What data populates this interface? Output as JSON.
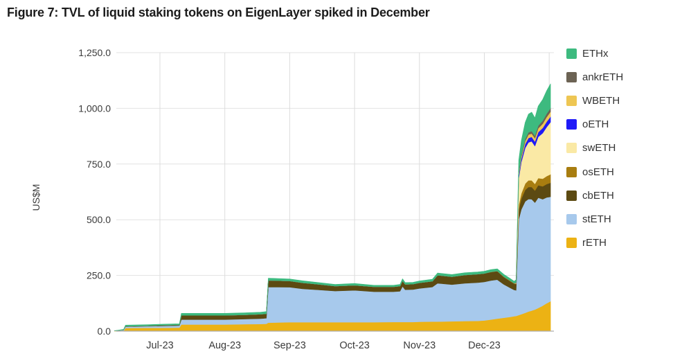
{
  "title": "Figure 7: TVL of liquid staking tokens on EigenLayer spiked in December",
  "chart_data": {
    "type": "area",
    "stacked": true,
    "title": "Figure 7: TVL of liquid staking tokens on EigenLayer spiked in December",
    "xlabel": "",
    "ylabel": "US$M",
    "ylim": [
      0,
      1250
    ],
    "y_ticks": [
      "0.0",
      "250.0",
      "500.0",
      "750.0",
      "1,000.0",
      "1,250.0"
    ],
    "y_tick_values": [
      0,
      250,
      500,
      750,
      1000,
      1250
    ],
    "x_ticks": [
      "Jul-23",
      "Aug-23",
      "Sep-23",
      "Oct-23",
      "Nov-23",
      "Dec-23"
    ],
    "x_tick_month_index": [
      1,
      2,
      3,
      4,
      5,
      6
    ],
    "x_range_month_index": [
      0.3,
      7.02
    ],
    "x_unit": "months (Jun-23 start = 0, Jul-23 tick = 1 … Jan-24 = 7)",
    "grid": true,
    "legend_position": "right",
    "series": [
      {
        "name": "ETHx",
        "color": "#3dba7f"
      },
      {
        "name": "ankrETH",
        "color": "#6c6354"
      },
      {
        "name": "WBETH",
        "color": "#eec653"
      },
      {
        "name": "oETH",
        "color": "#1f1af7"
      },
      {
        "name": "swETH",
        "color": "#fae9a5"
      },
      {
        "name": "osETH",
        "color": "#a87d10"
      },
      {
        "name": "cbETH",
        "color": "#5c4a12"
      },
      {
        "name": "stETH",
        "color": "#a7c9ec"
      },
      {
        "name": "rETH",
        "color": "#ecb214"
      }
    ],
    "stack_order_bottom_to_top": [
      "rETH",
      "stETH",
      "cbETH",
      "osETH",
      "swETH",
      "oETH",
      "WBETH",
      "ankrETH",
      "ETHx"
    ],
    "columns": [
      "t",
      "rETH",
      "stETH",
      "cbETH",
      "osETH",
      "swETH",
      "oETH",
      "WBETH",
      "ankrETH",
      "ETHx"
    ],
    "points": [
      [
        0.3,
        1,
        0.5,
        0,
        0,
        0,
        0,
        0,
        0,
        0.5
      ],
      [
        0.44,
        2,
        3,
        1,
        0,
        0,
        0,
        0,
        0,
        2
      ],
      [
        0.47,
        14,
        6,
        2,
        0,
        0,
        0,
        0,
        0,
        5
      ],
      [
        0.8,
        15,
        7,
        2,
        0,
        0,
        0,
        0,
        0,
        5
      ],
      [
        1.0,
        15,
        8,
        3,
        0,
        0,
        0,
        0,
        0,
        5
      ],
      [
        1.3,
        16,
        9,
        3,
        0,
        0,
        0,
        0,
        0,
        5
      ],
      [
        1.33,
        30,
        22,
        19,
        0,
        0,
        0,
        0,
        0,
        9
      ],
      [
        1.6,
        30,
        22,
        19,
        0,
        0,
        0,
        0,
        0,
        9
      ],
      [
        2.0,
        30,
        22,
        19,
        0,
        0,
        0,
        0,
        0,
        9
      ],
      [
        2.3,
        31,
        23,
        19,
        0,
        0,
        0,
        0,
        0,
        9
      ],
      [
        2.55,
        32,
        24,
        20,
        0,
        0,
        0,
        0,
        0,
        9
      ],
      [
        2.64,
        33,
        25,
        20,
        0,
        0,
        0,
        0,
        0,
        10
      ],
      [
        2.67,
        38,
        160,
        30,
        0,
        0,
        0,
        0,
        0,
        10
      ],
      [
        3.0,
        40,
        157,
        28,
        0,
        0,
        0,
        0,
        0,
        9
      ],
      [
        3.2,
        40,
        150,
        27,
        0,
        0,
        0,
        0,
        0,
        9
      ],
      [
        3.45,
        40,
        145,
        25,
        0,
        0,
        0,
        0,
        0,
        8
      ],
      [
        3.7,
        40,
        140,
        22,
        0,
        0,
        0,
        0,
        0,
        8
      ],
      [
        4.0,
        40,
        143,
        23,
        0,
        0,
        0,
        0,
        0,
        8
      ],
      [
        4.3,
        40,
        137,
        22,
        0,
        0,
        0,
        0,
        0,
        7
      ],
      [
        4.6,
        41,
        136,
        22,
        0,
        0,
        0,
        0,
        0,
        7
      ],
      [
        4.7,
        41,
        138,
        23,
        0,
        0,
        0,
        0,
        0,
        8
      ],
      [
        4.74,
        41,
        160,
        25,
        0,
        0,
        0,
        0,
        0,
        9
      ],
      [
        4.78,
        41,
        145,
        24,
        0,
        0,
        0,
        0,
        0,
        8
      ],
      [
        4.9,
        41,
        146,
        24,
        0,
        0,
        0,
        0,
        0,
        8
      ],
      [
        5.0,
        42,
        150,
        25,
        0,
        0,
        0,
        0,
        0,
        8
      ],
      [
        5.2,
        43,
        155,
        26,
        0,
        0,
        0,
        0,
        0,
        9
      ],
      [
        5.28,
        43,
        172,
        36,
        0,
        0,
        0,
        0,
        0,
        10
      ],
      [
        5.5,
        44,
        165,
        35,
        0,
        0,
        0,
        0,
        0,
        10
      ],
      [
        5.7,
        45,
        170,
        37,
        0,
        0,
        0,
        0,
        0,
        10
      ],
      [
        5.9,
        46,
        172,
        38,
        0,
        0,
        0,
        0,
        0,
        10
      ],
      [
        6.0,
        48,
        173,
        38,
        0,
        0,
        0,
        0,
        0,
        10
      ],
      [
        6.1,
        52,
        175,
        38,
        1,
        0,
        0,
        0,
        0,
        10
      ],
      [
        6.2,
        56,
        175,
        38,
        1,
        0,
        0,
        0,
        0,
        10
      ],
      [
        6.3,
        60,
        150,
        33,
        2,
        0,
        0,
        0,
        0,
        10
      ],
      [
        6.4,
        64,
        130,
        30,
        2,
        0,
        0,
        0,
        0,
        10
      ],
      [
        6.46,
        67,
        118,
        28,
        2,
        0,
        0,
        0,
        0,
        9
      ],
      [
        6.49,
        68,
        115,
        28,
        3,
        2,
        1,
        1,
        1,
        12
      ],
      [
        6.53,
        72,
        430,
        45,
        20,
        120,
        12,
        8,
        5,
        55
      ],
      [
        6.57,
        76,
        470,
        48,
        24,
        140,
        15,
        10,
        7,
        65
      ],
      [
        6.63,
        82,
        500,
        52,
        28,
        160,
        18,
        13,
        9,
        75
      ],
      [
        6.68,
        88,
        505,
        54,
        30,
        170,
        20,
        15,
        10,
        82
      ],
      [
        6.73,
        92,
        500,
        55,
        30,
        175,
        20,
        15,
        11,
        85
      ],
      [
        6.78,
        97,
        480,
        54,
        30,
        170,
        20,
        15,
        11,
        80
      ],
      [
        6.83,
        104,
        495,
        56,
        32,
        185,
        21,
        17,
        12,
        88
      ],
      [
        6.9,
        114,
        478,
        58,
        34,
        205,
        23,
        19,
        14,
        95
      ],
      [
        6.96,
        125,
        475,
        60,
        36,
        220,
        24,
        21,
        15,
        103
      ],
      [
        7.02,
        134,
        469,
        63,
        38,
        234,
        25,
        22,
        16,
        109
      ]
    ]
  },
  "colors": {
    "title_text": "#1c1c1c",
    "axis_text": "#3a3a3a",
    "gridline": "#e2e2e2",
    "vertical_gridline": "#dcdcdc",
    "bottom_axis": "#aeaeae",
    "background": "#ffffff"
  }
}
